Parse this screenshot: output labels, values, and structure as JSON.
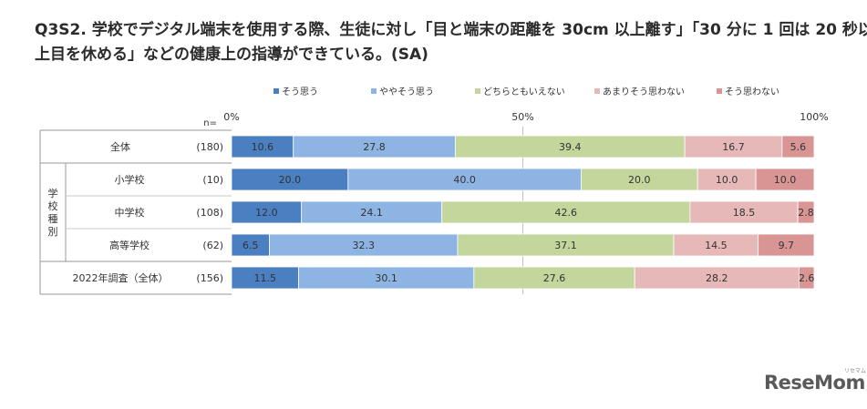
{
  "title_lines": [
    "Q3S2.  学校でデジタル端末を使用する際、生徒に対し「目と端末の距離を 30cm 以上離す」「30 分に 1 回は 20 秒以",
    "上目を休める」などの健康上の指導ができている。(SA)"
  ],
  "legend_colors": [
    "#4a7fc1",
    "#8eb4e3",
    "#c3d69b",
    "#e6b9b8",
    "#d99594"
  ],
  "n_label": "n=",
  "group_label": "学校種別",
  "chart_data": {
    "type": "bar",
    "orientation": "horizontal-stacked-100",
    "series_names": [
      "そう思う",
      "ややそう思う",
      "どちらともいえない",
      "あまりそう思わない",
      "そう思わない"
    ],
    "axis_ticks": [
      "0%",
      "50%",
      "100%"
    ],
    "xlim": [
      0,
      100
    ],
    "rows": [
      {
        "label": "全体",
        "n": "(180)",
        "values": [
          10.6,
          27.8,
          39.4,
          16.7,
          5.6
        ]
      },
      {
        "label": "小学校",
        "n": "(10)",
        "values": [
          20.0,
          40.0,
          20.0,
          10.0,
          10.0
        ]
      },
      {
        "label": "中学校",
        "n": "(108)",
        "values": [
          12.0,
          24.1,
          42.6,
          18.5,
          2.8
        ]
      },
      {
        "label": "高等学校",
        "n": "(62)",
        "values": [
          6.5,
          32.3,
          37.1,
          14.5,
          9.7
        ]
      },
      {
        "label": "2022年調査（全体）",
        "n": "(156)",
        "values": [
          11.5,
          30.1,
          27.6,
          28.2,
          2.6
        ]
      }
    ]
  },
  "logo": {
    "text": "ReseMom",
    "sub": "リセマム"
  }
}
